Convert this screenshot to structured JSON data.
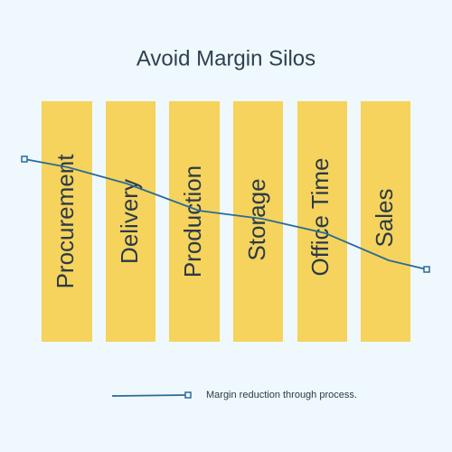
{
  "title": "Avoid Margin Silos",
  "columns": [
    {
      "label": "Procurement"
    },
    {
      "label": "Delivery"
    },
    {
      "label": "Production"
    },
    {
      "label": "Storage"
    },
    {
      "label": "Office Time"
    },
    {
      "label": "Sales"
    }
  ],
  "legend": {
    "label": "Margin reduction through process."
  }
}
